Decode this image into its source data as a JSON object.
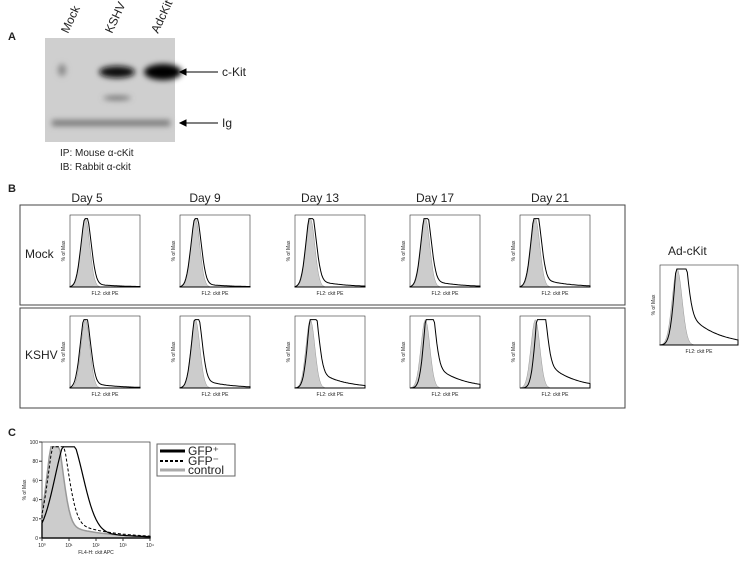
{
  "panel_a": {
    "label": "A",
    "lanes": [
      "Mock",
      "KSHV",
      "AdcKit"
    ],
    "bands": [
      "c-Kit",
      "Ig"
    ],
    "ip": "IP: Mouse α-cKit",
    "ib": "IB: Rabbit α-ckit"
  },
  "panel_b": {
    "label": "B",
    "days": [
      "Day 5",
      "Day 9",
      "Day 13",
      "Day 17",
      "Day 21"
    ],
    "rows": [
      "Mock",
      "KSHV"
    ],
    "y_axis": "% of Max",
    "x_axis": "FL2: ckit PE",
    "inset_title": "Ad-cKit"
  },
  "panel_c": {
    "label": "C",
    "y_axis": "% of Max",
    "x_axis": "FL4-H: ckit APC",
    "yticks": [
      0,
      20,
      40,
      60,
      80,
      100
    ],
    "xticks": [
      {
        "value": 1,
        "label": "10⁰"
      },
      {
        "value": 10,
        "label": "10¹"
      },
      {
        "value": 100,
        "label": "10²"
      },
      {
        "value": 1000,
        "label": "10³"
      },
      {
        "value": 10000,
        "label": "10⁴"
      }
    ],
    "legend": [
      "GFP⁺",
      "GFP⁻",
      "control"
    ]
  }
}
